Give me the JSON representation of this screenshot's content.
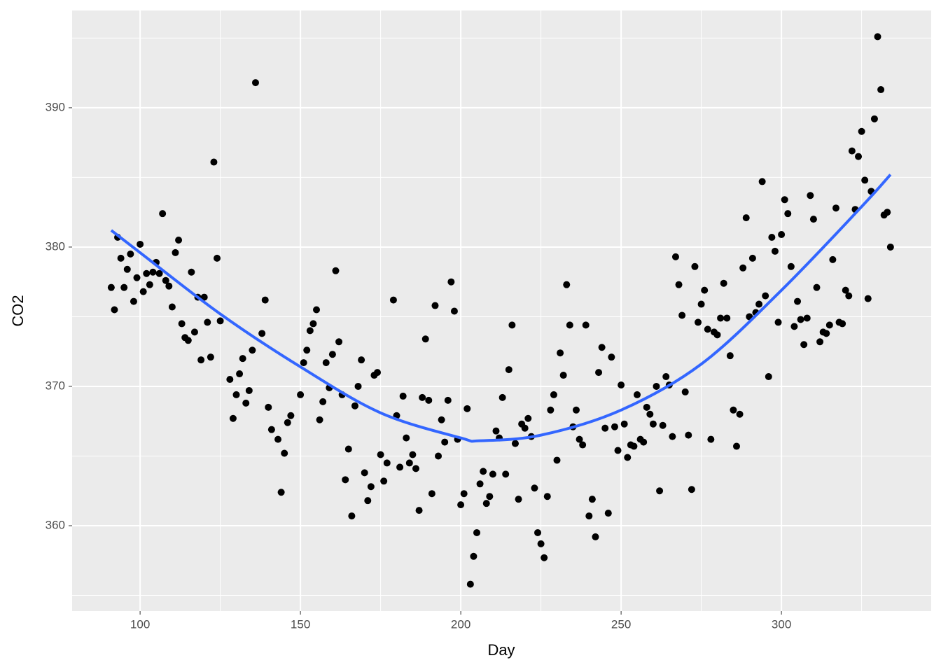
{
  "chart_data": {
    "type": "scatter",
    "x_label": "Day",
    "y_label": "CO2",
    "color": "#000000",
    "x": [
      91,
      92,
      93,
      94,
      95,
      96,
      97,
      98,
      99,
      100,
      101,
      102,
      103,
      104,
      105,
      106,
      107,
      108,
      109,
      110,
      111,
      112,
      113,
      114,
      115,
      116,
      117,
      118,
      119,
      120,
      121,
      122,
      123,
      124,
      125,
      128,
      129,
      130,
      131,
      132,
      133,
      134,
      135,
      136,
      138,
      139,
      140,
      141,
      143,
      144,
      145,
      146,
      147,
      150,
      151,
      152,
      153,
      154,
      155,
      156,
      157,
      158,
      159,
      160,
      161,
      162,
      163,
      164,
      165,
      166,
      167,
      168,
      169,
      170,
      171,
      172,
      173,
      174,
      175,
      176,
      177,
      179,
      180,
      181,
      182,
      183,
      184,
      185,
      186,
      187,
      188,
      189,
      190,
      191,
      192,
      193,
      194,
      195,
      196,
      197,
      198,
      199,
      200,
      201,
      202,
      203,
      204,
      205,
      206,
      207,
      208,
      209,
      210,
      211,
      212,
      213,
      214,
      215,
      216,
      217,
      218,
      219,
      220,
      221,
      222,
      223,
      224,
      225,
      226,
      227,
      228,
      229,
      230,
      231,
      232,
      233,
      234,
      235,
      236,
      237,
      238,
      239,
      240,
      241,
      242,
      243,
      244,
      245,
      246,
      247,
      248,
      249,
      250,
      251,
      252,
      253,
      254,
      255,
      256,
      257,
      258,
      259,
      260,
      261,
      262,
      263,
      264,
      265,
      266,
      267,
      268,
      269,
      270,
      271,
      272,
      273,
      274,
      275,
      276,
      277,
      278,
      279,
      280,
      281,
      282,
      283,
      284,
      285,
      286,
      287,
      288,
      289,
      290,
      291,
      292,
      293,
      294,
      295,
      296,
      297,
      298,
      299,
      300,
      301,
      302,
      303,
      304,
      305,
      306,
      307,
      308,
      309,
      310,
      311,
      312,
      313,
      314,
      315,
      316,
      317,
      318,
      319,
      320,
      321,
      322,
      323,
      324,
      325,
      326,
      327,
      328,
      329,
      330,
      331,
      332,
      333,
      334
    ],
    "values": [
      377.1,
      375.5,
      380.7,
      379.2,
      377.1,
      378.4,
      379.5,
      376.1,
      377.8,
      380.2,
      376.8,
      378.1,
      377.3,
      378.2,
      378.9,
      378.1,
      382.4,
      377.6,
      377.2,
      375.7,
      379.6,
      380.5,
      374.5,
      373.5,
      373.3,
      378.2,
      373.9,
      376.4,
      371.9,
      376.4,
      374.6,
      372.1,
      386.1,
      379.2,
      374.7,
      370.5,
      367.7,
      369.4,
      370.9,
      372.0,
      368.8,
      369.7,
      372.6,
      391.8,
      373.8,
      376.2,
      368.5,
      366.9,
      366.2,
      362.4,
      365.2,
      367.4,
      367.9,
      369.4,
      371.7,
      372.6,
      374.0,
      374.5,
      375.5,
      367.6,
      368.9,
      371.7,
      369.9,
      372.3,
      378.3,
      373.2,
      369.4,
      363.3,
      365.5,
      360.7,
      368.6,
      370.0,
      371.9,
      363.8,
      361.8,
      362.8,
      370.8,
      371.0,
      365.1,
      363.2,
      364.5,
      376.2,
      367.9,
      364.2,
      369.3,
      366.3,
      364.5,
      365.1,
      364.1,
      361.1,
      369.2,
      373.4,
      369.0,
      362.3,
      375.8,
      365.0,
      367.6,
      366.0,
      369.0,
      377.5,
      375.4,
      366.2,
      361.5,
      362.3,
      368.4,
      355.8,
      357.8,
      359.5,
      363.0,
      363.9,
      361.6,
      362.1,
      363.7,
      366.8,
      366.3,
      369.2,
      363.7,
      371.2,
      374.4,
      365.9,
      361.9,
      367.3,
      367.0,
      367.7,
      366.4,
      362.7,
      359.5,
      358.7,
      357.7,
      362.1,
      368.3,
      369.4,
      364.7,
      372.4,
      370.8,
      377.3,
      374.4,
      367.1,
      368.3,
      366.2,
      365.8,
      374.4,
      360.7,
      361.9,
      359.2,
      371.0,
      372.8,
      367.0,
      360.9,
      372.1,
      367.1,
      365.4,
      370.1,
      367.3,
      364.9,
      365.8,
      365.7,
      369.4,
      366.2,
      366.0,
      368.5,
      368.0,
      367.3,
      370.0,
      362.5,
      367.2,
      370.7,
      370.1,
      366.4,
      379.3,
      377.3,
      375.1,
      369.6,
      366.5,
      362.6,
      378.6,
      374.6,
      375.9,
      376.9,
      374.1,
      366.2,
      373.9,
      373.7,
      374.9,
      377.4,
      374.9,
      372.2,
      368.3,
      365.7,
      368.0,
      378.5,
      382.1,
      375.0,
      379.2,
      375.3,
      375.9,
      384.7,
      376.5,
      370.7,
      380.7,
      379.7,
      374.6,
      380.9,
      383.4,
      382.4,
      378.6,
      374.3,
      376.1,
      374.8,
      373.0,
      374.9,
      383.7,
      382.0,
      377.1,
      373.2,
      373.9,
      373.8,
      374.4,
      379.1,
      382.8,
      374.6,
      374.5,
      376.9,
      376.5,
      386.9,
      382.7,
      386.5,
      388.3,
      384.8,
      376.3,
      384.0,
      389.2,
      395.1,
      391.3,
      382.3,
      382.5,
      380.0
    ],
    "fit": {
      "color": "#3366ff",
      "x": [
        91,
        100,
        125,
        150,
        175,
        200,
        206,
        225,
        250,
        275,
        300,
        325,
        334
      ],
      "values": [
        381.2,
        379.6,
        375.2,
        371.4,
        368.1,
        366.3,
        366.1,
        366.5,
        368.3,
        371.6,
        376.9,
        382.9,
        385.2
      ]
    },
    "xlim": [
      78.8,
      346.7
    ],
    "ylim": [
      353.87,
      396.98
    ],
    "xticks": [
      100,
      150,
      200,
      250,
      300
    ],
    "yticks": [
      360,
      370,
      380,
      390
    ],
    "minor_xticks": [
      125,
      175,
      225,
      275,
      325
    ],
    "minor_yticks": [
      355,
      365,
      375,
      385,
      395
    ],
    "grid": true
  }
}
